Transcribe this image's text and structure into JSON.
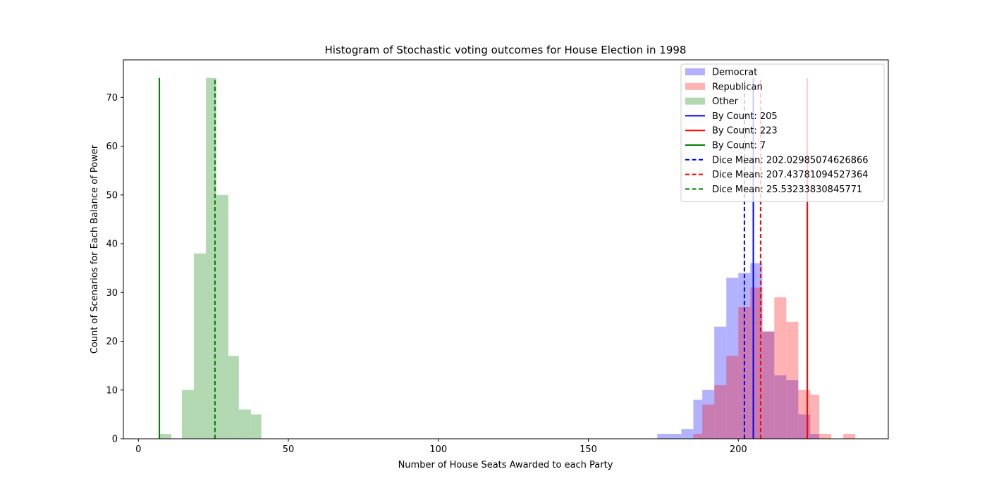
{
  "chart_data": {
    "type": "bar",
    "title": "Histogram of Stochastic voting outcomes for House Election in 1998",
    "xlabel": "Number of House Seats Awarded to each Party",
    "ylabel": "Count of Scenarios for Each Balance of Power",
    "xlim": [
      -5,
      250
    ],
    "ylim": [
      0,
      77.7
    ],
    "xticks": [
      0,
      50,
      100,
      150,
      200
    ],
    "yticks": [
      0,
      10,
      20,
      30,
      40,
      50,
      60,
      70
    ],
    "legend_position": "upper right",
    "series": [
      {
        "name": "Democrat",
        "kind": "histogram",
        "color": "#0000ff",
        "alpha": 0.3,
        "bins": [
          [
            173,
            177,
            1
          ],
          [
            177,
            181,
            1
          ],
          [
            181,
            185,
            2
          ],
          [
            185,
            188,
            8
          ],
          [
            188,
            192,
            10
          ],
          [
            192,
            196,
            23
          ],
          [
            196,
            200,
            33
          ],
          [
            200,
            204,
            34
          ],
          [
            204,
            208,
            36
          ],
          [
            208,
            212,
            22
          ],
          [
            212,
            216,
            13
          ],
          [
            216,
            220,
            12
          ],
          [
            220,
            224,
            5
          ],
          [
            224,
            227,
            1
          ]
        ]
      },
      {
        "name": "Republican",
        "kind": "histogram",
        "color": "#ff0000",
        "alpha": 0.3,
        "bins": [
          [
            185,
            188,
            1
          ],
          [
            188,
            192,
            7
          ],
          [
            192,
            196,
            11
          ],
          [
            196,
            200,
            17
          ],
          [
            200,
            204,
            27
          ],
          [
            204,
            208,
            31
          ],
          [
            208,
            212,
            22
          ],
          [
            212,
            216,
            29
          ],
          [
            216,
            220,
            24
          ],
          [
            220,
            224,
            10
          ],
          [
            224,
            227,
            9
          ],
          [
            227,
            231,
            1
          ],
          [
            231,
            235,
            0
          ],
          [
            235,
            239,
            1
          ]
        ]
      },
      {
        "name": "Other",
        "kind": "histogram",
        "color": "#008000",
        "alpha": 0.3,
        "bins": [
          [
            7,
            11,
            1
          ],
          [
            11,
            14.5,
            0
          ],
          [
            14.5,
            18.5,
            10
          ],
          [
            18.5,
            22.5,
            38
          ],
          [
            22.5,
            26,
            74
          ],
          [
            26,
            30,
            50
          ],
          [
            30,
            33.5,
            17
          ],
          [
            33.5,
            37.5,
            6
          ],
          [
            37.5,
            41,
            5
          ]
        ]
      }
    ],
    "reference_lines": [
      {
        "label": "By Count: 205",
        "x": 205,
        "color": "#0000ff",
        "style": "solid",
        "ymax": 74
      },
      {
        "label": "By Count: 223",
        "x": 223,
        "color": "#ff0000",
        "style": "solid",
        "ymax": 74
      },
      {
        "label": "By Count: 7",
        "x": 7,
        "color": "#008000",
        "style": "solid",
        "ymax": 74
      },
      {
        "label": "Dice Mean: 202.02985074626866",
        "x": 202.02985074626866,
        "color": "#0000ff",
        "style": "dashed",
        "ymax": 74
      },
      {
        "label": "Dice Mean: 207.43781094527364",
        "x": 207.43781094527364,
        "color": "#ff0000",
        "style": "dashed",
        "ymax": 74
      },
      {
        "label": "Dice Mean: 25.53233830845771",
        "x": 25.53233830845771,
        "color": "#008000",
        "style": "dashed",
        "ymax": 74
      }
    ]
  }
}
